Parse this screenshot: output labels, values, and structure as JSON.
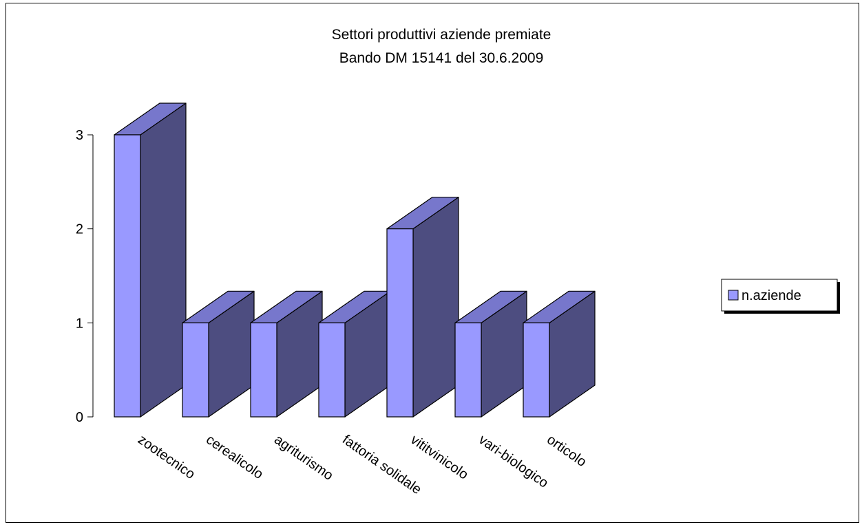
{
  "chart_data": {
    "type": "bar",
    "title_lines": [
      "Settori produttivi aziende premiate",
      "Bando DM 15141 del 30.6.2009"
    ],
    "categories": [
      "zootecnico",
      "cerealicolo",
      "agriturismo",
      "fattoria solidale",
      "vititvinicolo",
      "vari-biologico",
      "orticolo"
    ],
    "series": [
      {
        "name": "n.aziende",
        "values": [
          3,
          1,
          1,
          1,
          2,
          1,
          1
        ]
      }
    ],
    "ylim": [
      0,
      3
    ],
    "yticks": [
      "0",
      "1",
      "2",
      "3"
    ],
    "grid": false,
    "legend": "right",
    "three_d": true,
    "colors": {
      "front": "#9999ff",
      "side": "#4d4d80",
      "top": "#7777cc",
      "outline": "#000000"
    }
  }
}
